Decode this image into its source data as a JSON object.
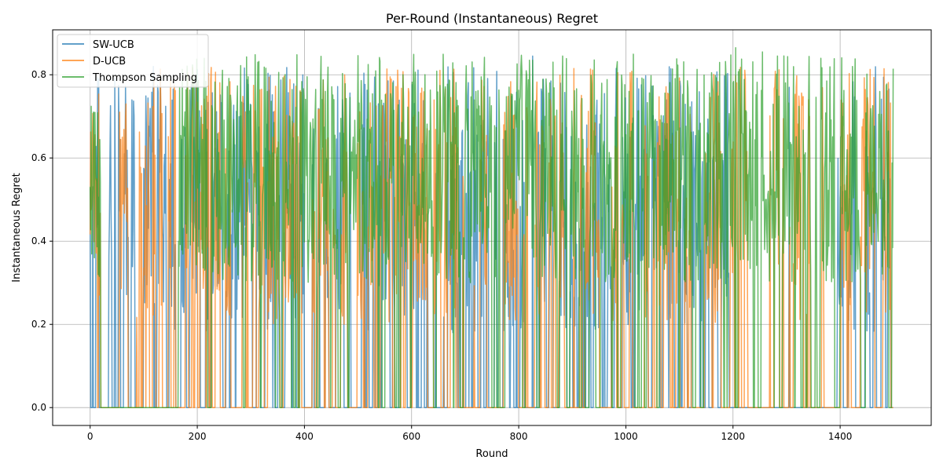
{
  "chart_data": {
    "type": "line",
    "title": "Per-Round (Instantaneous) Regret",
    "xlabel": "Round",
    "ylabel": "Instantaneous Regret",
    "xlim": [
      -70,
      1570
    ],
    "ylim": [
      -0.043,
      0.908
    ],
    "xticks": [
      0,
      200,
      400,
      600,
      800,
      1000,
      1200,
      1400
    ],
    "yticks": [
      0.0,
      0.2,
      0.4,
      0.6,
      0.8
    ],
    "xtick_labels": [
      "0",
      "200",
      "400",
      "600",
      "800",
      "1000",
      "1200",
      "1400"
    ],
    "ytick_labels": [
      "0.0",
      "0.2",
      "0.4",
      "0.6",
      "0.8"
    ],
    "grid": true,
    "legend_position": "top-left",
    "n_rounds": 1500,
    "series": [
      {
        "name": "SW-UCB",
        "color": "#1f77b4",
        "active_segments": [
          [
            0,
            22
          ],
          [
            35,
            160
          ],
          [
            170,
            400
          ],
          [
            415,
            760
          ],
          [
            765,
            1195
          ],
          [
            1395,
            1500
          ]
        ],
        "active_rate": 0.55,
        "value_range": [
          0.18,
          0.82
        ],
        "peaks": [
          [
            826,
            0.845
          ],
          [
            1305,
            0.77
          ],
          [
            960,
            0.755
          ],
          [
            878,
            0.78
          ]
        ]
      },
      {
        "name": "D-UCB",
        "color": "#ff7f0e",
        "active_segments": [
          [
            0,
            160
          ],
          [
            178,
            395
          ],
          [
            415,
            760
          ],
          [
            765,
            1195
          ],
          [
            1195,
            1390
          ],
          [
            1400,
            1500
          ]
        ],
        "active_rate": 0.5,
        "value_range": [
          0.2,
          0.82
        ],
        "peaks": [
          [
            55,
            0.71
          ],
          [
            475,
            0.8
          ],
          [
            560,
            0.795
          ],
          [
            903,
            0.815
          ],
          [
            985,
            0.805
          ]
        ]
      },
      {
        "name": "Thompson Sampling",
        "color": "#2ca02c",
        "active_segments": [
          [
            0,
            20
          ],
          [
            165,
            388
          ],
          [
            392,
            598
          ],
          [
            600,
            765
          ],
          [
            775,
            1195
          ],
          [
            1195,
            1390
          ],
          [
            1400,
            1500
          ]
        ],
        "active_rate": 0.85,
        "value_range": [
          0.3,
          0.85
        ],
        "peaks": [
          [
            1205,
            0.865
          ],
          [
            1255,
            0.855
          ],
          [
            826,
            0.835
          ],
          [
            1283,
            0.845
          ]
        ]
      }
    ]
  }
}
